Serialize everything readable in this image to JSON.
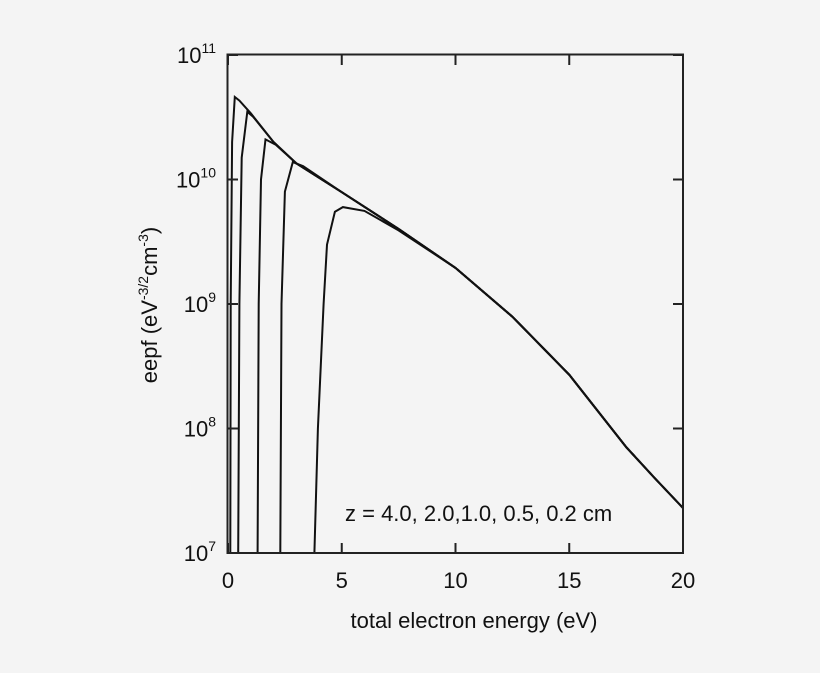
{
  "chart_data": {
    "type": "line",
    "title": "",
    "xlabel": "total electron energy (eV)",
    "ylabel": {
      "base": "eepf (eV",
      "sup1": "-3/2",
      "mid": "cm",
      "sup2": "-3",
      "end": ")"
    },
    "xlim": [
      0,
      20
    ],
    "ylim": [
      10000000.0,
      100000000000.0
    ],
    "yscale": "log",
    "grid": false,
    "x_ticks": [
      {
        "value": 0,
        "label": "0"
      },
      {
        "value": 5,
        "label": "5"
      },
      {
        "value": 10,
        "label": "10"
      },
      {
        "value": 15,
        "label": "15"
      },
      {
        "value": 20,
        "label": "20"
      }
    ],
    "y_ticks": [
      {
        "exp": 7,
        "base": "10",
        "sup": "7"
      },
      {
        "exp": 8,
        "base": "10",
        "sup": "8"
      },
      {
        "exp": 9,
        "base": "10",
        "sup": "9"
      },
      {
        "exp": 10,
        "base": "10",
        "sup": "10"
      },
      {
        "exp": 11,
        "base": "10",
        "sup": "11"
      }
    ],
    "annotation": "z = 4.0, 2.0,1.0, 0.5, 0.2 cm",
    "shared_tail": [
      [
        1,
        34000000000.0
      ],
      [
        2,
        20000000000.0
      ],
      [
        3,
        13500000000.0
      ],
      [
        5,
        7900000000.0
      ],
      [
        7.5,
        4000000000.0
      ],
      [
        10,
        1950000000.0
      ],
      [
        12.5,
        790000000.0
      ],
      [
        15,
        270000000.0
      ],
      [
        17.5,
        71000000.0
      ],
      [
        18.75,
        40000000.0
      ],
      [
        20,
        23000000.0
      ]
    ],
    "series": [
      {
        "name": "z = 4.0 cm",
        "points": [
          [
            0.1,
            10000000.0
          ],
          [
            0.12,
            1000000000.0
          ],
          [
            0.18,
            20000000000.0
          ],
          [
            0.3,
            46000000000.0
          ],
          [
            0.5,
            43000000000.0
          ]
        ]
      },
      {
        "name": "z = 2.0 cm",
        "points": [
          [
            0.45,
            10000000.0
          ],
          [
            0.5,
            1000000000.0
          ],
          [
            0.6,
            15000000000.0
          ],
          [
            0.85,
            35000000000.0
          ],
          [
            1.1,
            32000000000.0
          ]
        ]
      },
      {
        "name": "z = 1.0 cm",
        "points": [
          [
            1.3,
            10000000.0
          ],
          [
            1.35,
            1000000000.0
          ],
          [
            1.45,
            10000000000.0
          ],
          [
            1.65,
            21000000000.0
          ],
          [
            2.1,
            19000000000.0
          ]
        ]
      },
      {
        "name": "z = 0.5 cm",
        "points": [
          [
            2.3,
            10000000.0
          ],
          [
            2.35,
            1000000000.0
          ],
          [
            2.5,
            8000000000.0
          ],
          [
            2.85,
            13800000000.0
          ],
          [
            3.3,
            12800000000.0
          ]
        ]
      },
      {
        "name": "z = 0.2 cm",
        "points": [
          [
            3.8,
            10000000.0
          ],
          [
            3.95,
            100000000.0
          ],
          [
            4.2,
            1000000000.0
          ],
          [
            4.35,
            3000000000.0
          ],
          [
            4.7,
            5500000000.0
          ],
          [
            5.05,
            6000000000.0
          ],
          [
            6,
            5600000000.0
          ],
          [
            7.5,
            3900000000.0
          ]
        ]
      }
    ]
  }
}
